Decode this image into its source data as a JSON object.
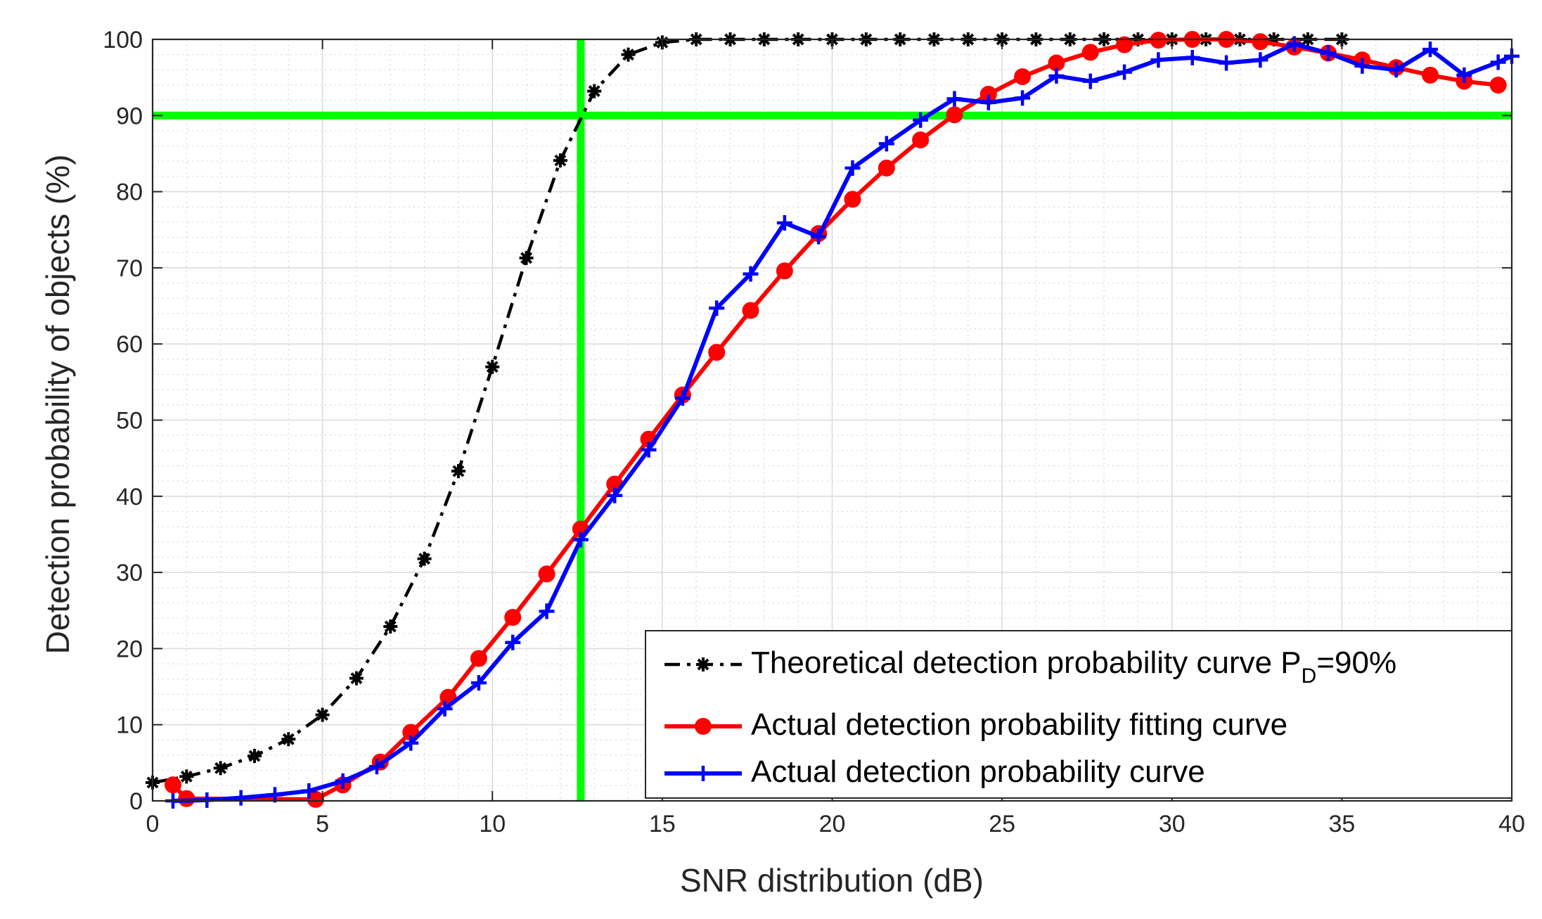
{
  "chart_data": {
    "type": "line",
    "xlabel": "SNR distribution (dB)",
    "ylabel": "Detection probability of objects (%)",
    "xlim": [
      0,
      40
    ],
    "ylim": [
      0,
      100
    ],
    "xticks": [
      0,
      5,
      10,
      15,
      20,
      25,
      30,
      35,
      40
    ],
    "yticks": [
      0,
      10,
      20,
      30,
      40,
      50,
      60,
      70,
      80,
      90,
      100
    ],
    "grid": true,
    "minor_grid": true,
    "legend_position": "bottom-right",
    "series": [
      {
        "name": "Theoretical detection probability curve P",
        "name_subscript": "D",
        "name_suffix": "=90%",
        "color": "#000000",
        "line_style": "dash-dot",
        "marker": "asterisk",
        "x": [
          0,
          1,
          2,
          3,
          4,
          5,
          6,
          7,
          8,
          9,
          10,
          11,
          12,
          13,
          14,
          15,
          16,
          17,
          18,
          19,
          20,
          21,
          22,
          23,
          24,
          25,
          26,
          27,
          28,
          29,
          30,
          31,
          32,
          33,
          34,
          35
        ],
        "y": [
          2.4,
          3.2,
          4.3,
          5.9,
          8.1,
          11.3,
          16.1,
          22.9,
          31.8,
          43.3,
          57.0,
          71.3,
          84.1,
          93.2,
          98.0,
          99.6,
          100,
          100,
          100,
          100,
          100,
          100,
          100,
          100,
          100,
          100,
          100,
          100,
          100,
          100,
          100,
          100,
          100,
          100,
          100,
          100
        ]
      },
      {
        "name": "Actual detection probability fitting curve",
        "color": "#ff0000",
        "line_style": "solid",
        "marker": "circle",
        "x": [
          0.6,
          1.0,
          4.8,
          5.6,
          6.7,
          7.6,
          8.7,
          9.6,
          10.6,
          11.6,
          12.6,
          13.6,
          14.6,
          15.6,
          16.6,
          17.6,
          18.6,
          19.6,
          20.6,
          21.6,
          22.6,
          23.6,
          24.6,
          25.6,
          26.6,
          27.6,
          28.6,
          29.6,
          30.6,
          31.6,
          32.6,
          33.6,
          34.6,
          35.6,
          36.6,
          37.6,
          38.6,
          39.6
        ],
        "y": [
          2.1,
          0.3,
          0.2,
          2.1,
          5.1,
          9.0,
          13.6,
          18.7,
          24.1,
          29.8,
          35.7,
          41.6,
          47.5,
          53.3,
          58.9,
          64.4,
          69.6,
          74.5,
          79.0,
          83.1,
          86.8,
          90.1,
          92.8,
          95.1,
          96.9,
          98.3,
          99.3,
          99.9,
          100,
          100,
          99.7,
          99.0,
          98.2,
          97.3,
          96.3,
          95.3,
          94.5,
          94.0
        ]
      },
      {
        "name": "Actual detection probability curve",
        "color": "#0000ff",
        "line_style": "solid",
        "marker": "plus",
        "x": [
          0.6,
          1.6,
          2.6,
          3.6,
          4.6,
          5.6,
          6.6,
          7.6,
          8.6,
          9.6,
          10.6,
          11.6,
          12.6,
          13.6,
          14.6,
          15.6,
          16.6,
          17.6,
          18.6,
          19.6,
          20.6,
          21.6,
          22.6,
          23.6,
          24.6,
          25.6,
          26.6,
          27.6,
          28.6,
          29.6,
          30.6,
          31.6,
          32.6,
          33.6,
          34.6,
          35.6,
          36.6,
          37.6,
          38.6,
          39.6,
          40.0
        ],
        "y": [
          0,
          0.1,
          0.4,
          0.8,
          1.3,
          2.6,
          4.5,
          7.6,
          12.1,
          15.5,
          20.8,
          24.9,
          34.3,
          40.1,
          46.1,
          52.9,
          64.7,
          69.2,
          75.9,
          74.1,
          83.1,
          86.3,
          89.4,
          92.2,
          91.7,
          92.3,
          95.2,
          94.5,
          95.7,
          97.3,
          97.6,
          96.9,
          97.3,
          99.4,
          98.2,
          96.5,
          96.0,
          98.7,
          95.3,
          97.0,
          97.8
        ]
      }
    ],
    "reference_lines": [
      {
        "orientation": "horizontal",
        "value": 90,
        "color": "#00ff00"
      },
      {
        "orientation": "vertical",
        "value": 12.6,
        "color": "#00ff00"
      }
    ]
  }
}
